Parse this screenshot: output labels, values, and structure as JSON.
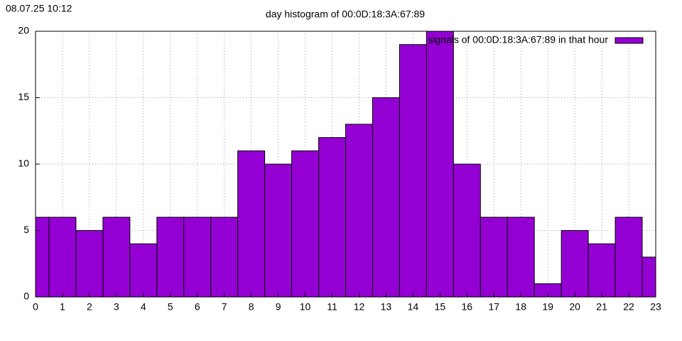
{
  "chart_data": {
    "type": "bar",
    "timestamp": "08.07.25 10:12",
    "title": "day histogram of 00:0D:18:3A:67:89",
    "x": [
      0,
      1,
      2,
      3,
      4,
      5,
      6,
      7,
      8,
      9,
      10,
      11,
      12,
      13,
      14,
      15,
      16,
      17,
      18,
      19,
      20,
      21,
      22,
      23
    ],
    "series": [
      {
        "name": "signals of 00:0D:18:3A:67:89 in that hour",
        "color": "#9400d3",
        "values": [
          6,
          6,
          5,
          6,
          4,
          6,
          6,
          6,
          11,
          10,
          11,
          12,
          13,
          15,
          19,
          20,
          10,
          6,
          6,
          1,
          5,
          4,
          6,
          3
        ]
      }
    ],
    "xlim": [
      0,
      23
    ],
    "ylim": [
      0,
      20
    ],
    "xticks": [
      0,
      1,
      2,
      3,
      4,
      5,
      6,
      7,
      8,
      9,
      10,
      11,
      12,
      13,
      14,
      15,
      16,
      17,
      18,
      19,
      20,
      21,
      22,
      23
    ],
    "yticks": [
      0,
      5,
      10,
      15,
      20
    ],
    "grid": true,
    "legend": "top-right"
  }
}
